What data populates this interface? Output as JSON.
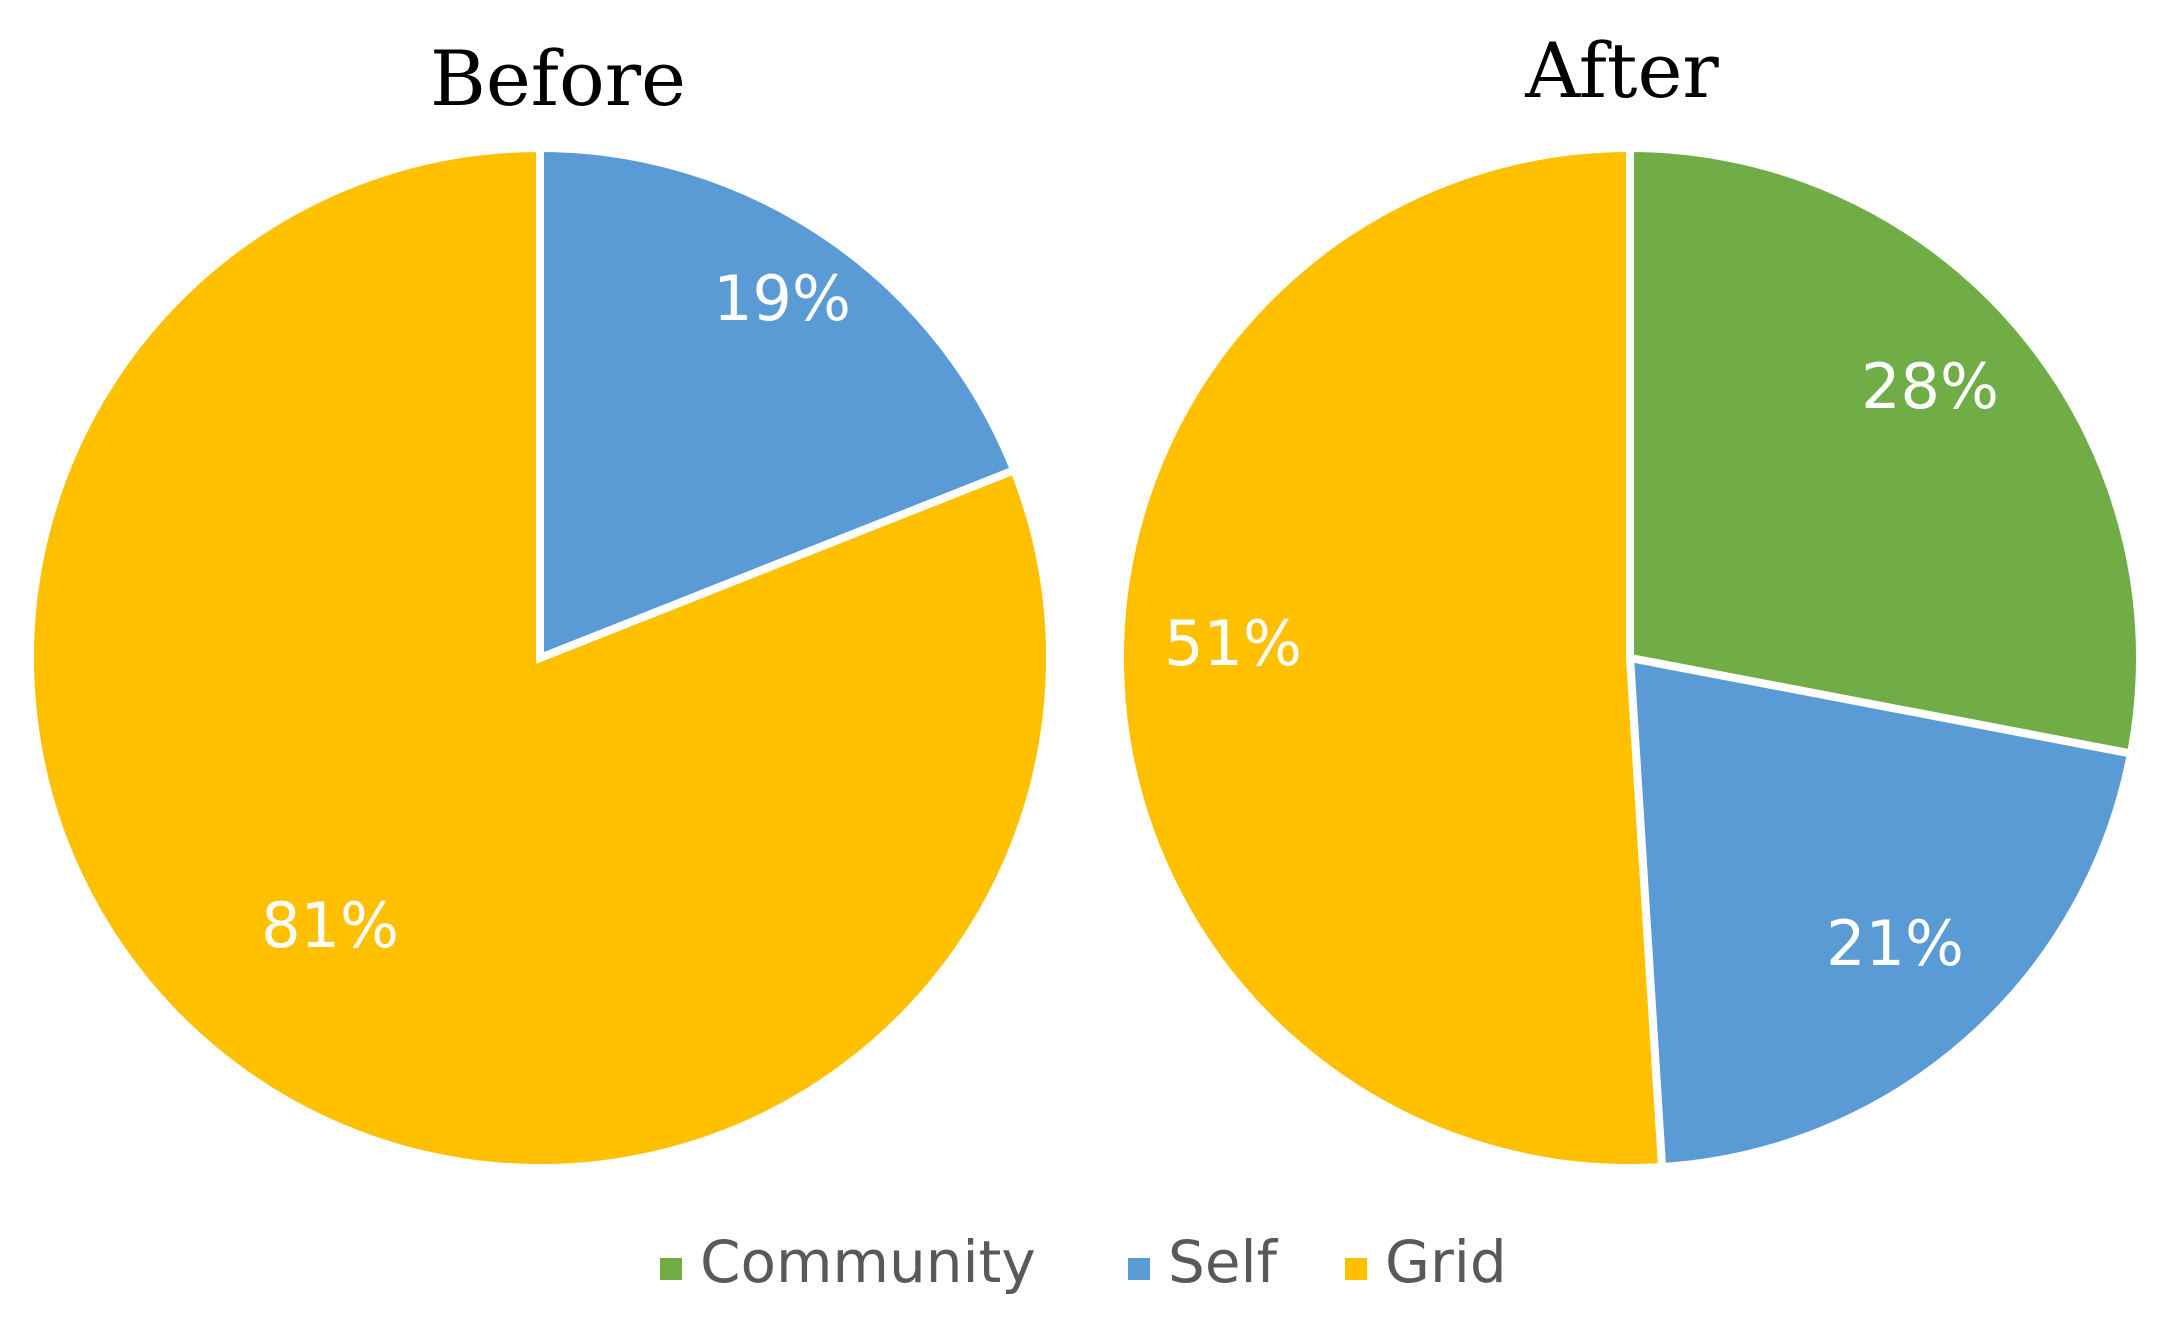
{
  "chart_data": [
    {
      "type": "pie",
      "title": "Before",
      "slices": [
        {
          "label": "Self",
          "value": 19,
          "display": "19%"
        },
        {
          "label": "Grid",
          "value": 81,
          "display": "81%"
        }
      ]
    },
    {
      "type": "pie",
      "title": "After",
      "slices": [
        {
          "label": "Community",
          "value": 28,
          "display": "28%"
        },
        {
          "label": "Self",
          "value": 21,
          "display": "21%"
        },
        {
          "label": "Grid",
          "value": 51,
          "display": "51%"
        }
      ]
    }
  ],
  "legend": {
    "placement": "bottom",
    "items": [
      {
        "label": "Community",
        "color": "#70AD47"
      },
      {
        "label": "Self",
        "color": "#5B9BD5"
      },
      {
        "label": "Grid",
        "color": "#FFC000"
      }
    ]
  },
  "colors": {
    "Community": "#70AD47",
    "Self": "#5B9BD5",
    "Grid": "#FFC000",
    "separator": "#ffffff"
  }
}
